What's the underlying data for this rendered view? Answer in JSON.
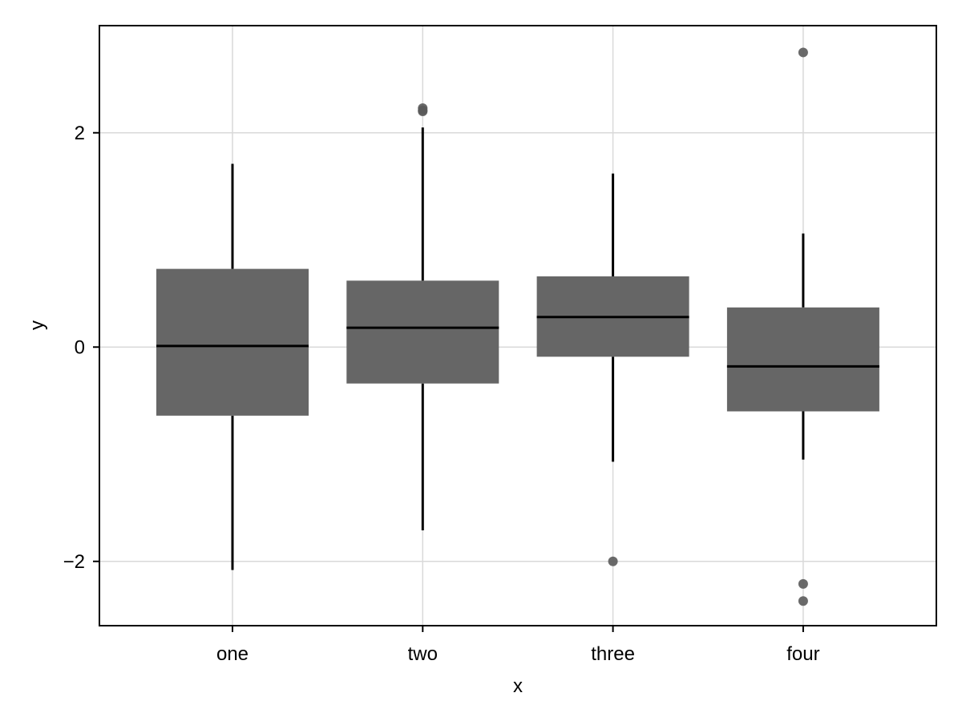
{
  "chart_data": {
    "type": "box",
    "xlabel": "x",
    "ylabel": "y",
    "categories": [
      "one",
      "two",
      "three",
      "four"
    ],
    "ylim": [
      -2.6,
      3.0
    ],
    "yticks": [
      -2,
      0,
      2
    ],
    "ytick_labels": [
      "−2",
      "0",
      "2"
    ],
    "grid": true,
    "legend": "none",
    "box_color": "#666666",
    "line_color": "#000000",
    "outlier_color": "#5a5a5a",
    "boxes": [
      {
        "category": "one",
        "whisker_low": -2.08,
        "q1": -0.64,
        "median": 0.01,
        "q3": 0.73,
        "whisker_high": 1.71,
        "outliers": []
      },
      {
        "category": "two",
        "whisker_low": -1.71,
        "q1": -0.34,
        "median": 0.18,
        "q3": 0.62,
        "whisker_high": 2.05,
        "outliers": [
          2.2,
          2.21,
          2.23
        ]
      },
      {
        "category": "three",
        "whisker_low": -1.07,
        "q1": -0.09,
        "median": 0.28,
        "q3": 0.66,
        "whisker_high": 1.62,
        "outliers": [
          -2.0
        ]
      },
      {
        "category": "four",
        "whisker_low": -1.05,
        "q1": -0.6,
        "median": -0.18,
        "q3": 0.37,
        "whisker_high": 1.06,
        "outliers": [
          -2.21,
          -2.37,
          2.75
        ]
      }
    ]
  }
}
